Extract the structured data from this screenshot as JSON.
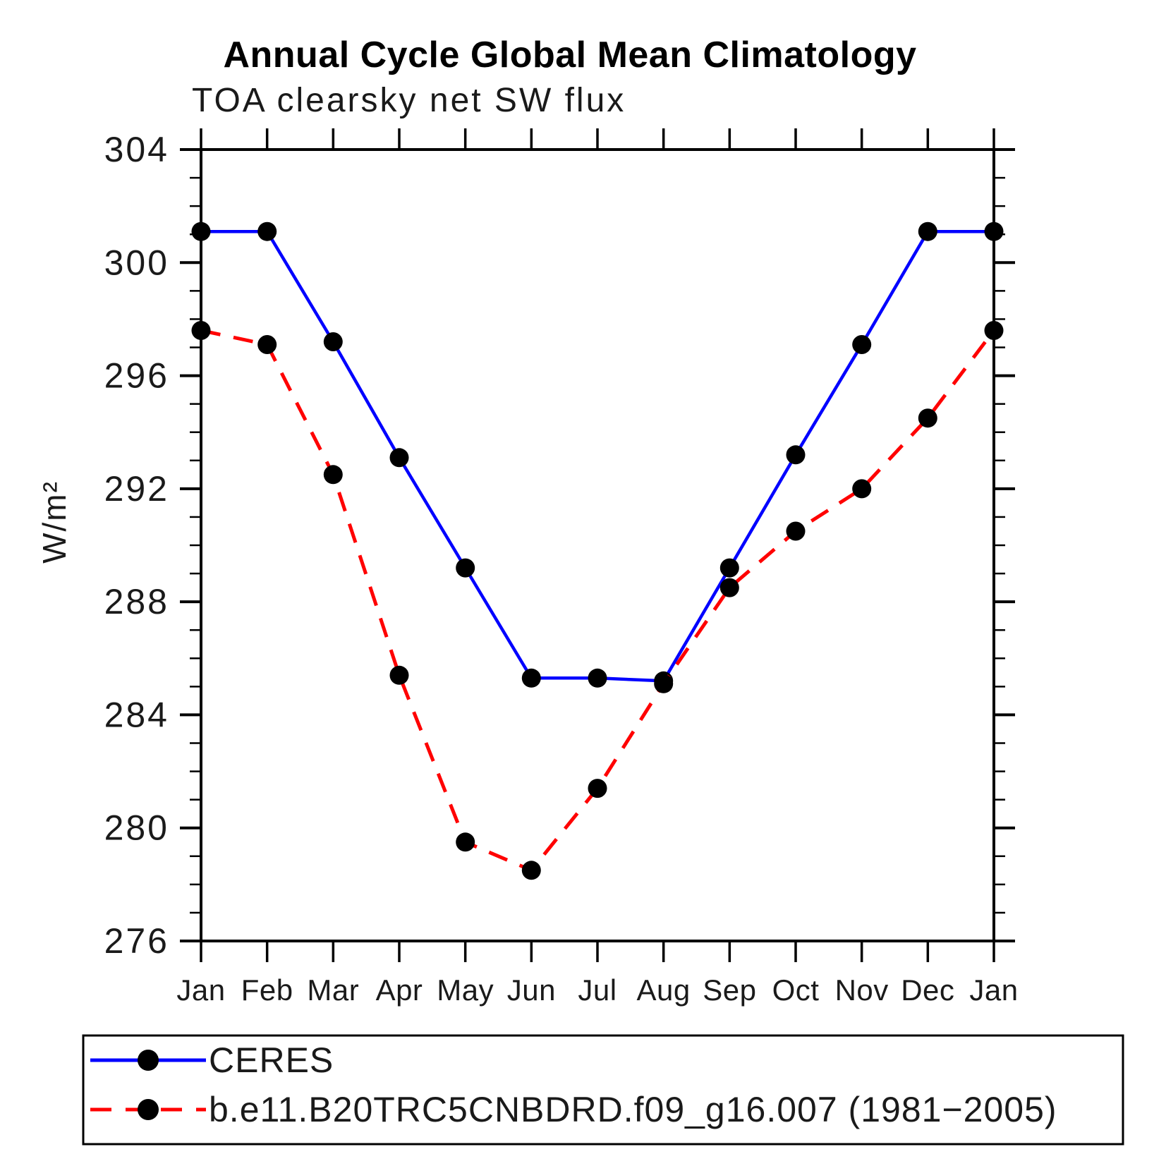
{
  "page": {
    "background_color": "#ffffff",
    "axis_color": "#000000",
    "text_color": "#1a1a1a"
  },
  "chart_data": {
    "type": "line",
    "title": "Annual Cycle Global Mean Climatology",
    "subtitle": "TOA clearsky net SW flux",
    "ylabel": "W/m²",
    "xlabel": "",
    "categories": [
      "Jan",
      "Feb",
      "Mar",
      "Apr",
      "May",
      "Jun",
      "Jul",
      "Aug",
      "Sep",
      "Oct",
      "Nov",
      "Dec",
      "Jan"
    ],
    "ylim": [
      276,
      304
    ],
    "y_major_tick_step": 4,
    "y_minor_tick_step": 1,
    "y_major_ticks": [
      276,
      280,
      284,
      288,
      292,
      296,
      300,
      304
    ],
    "grid": false,
    "ticks": "outward-all-four-sides",
    "legend_position": "bottom-box",
    "series": [
      {
        "name": "CERES",
        "line_color": "#0000ff",
        "line_style": "solid",
        "marker": "circle",
        "marker_color": "#000000",
        "values": [
          301.1,
          301.1,
          297.2,
          293.1,
          289.2,
          285.3,
          285.3,
          285.2,
          289.2,
          293.2,
          297.1,
          301.1,
          301.1
        ]
      },
      {
        "name": "b.e11.B20TRC5CNBDRD.f09_g16.007 (1981−2005)",
        "line_color": "#ff0000",
        "line_style": "dashed",
        "marker": "circle",
        "marker_color": "#000000",
        "values": [
          297.6,
          297.1,
          292.5,
          285.4,
          279.5,
          278.5,
          281.4,
          285.1,
          288.5,
          290.5,
          292.0,
          294.5,
          297.6
        ]
      }
    ]
  }
}
